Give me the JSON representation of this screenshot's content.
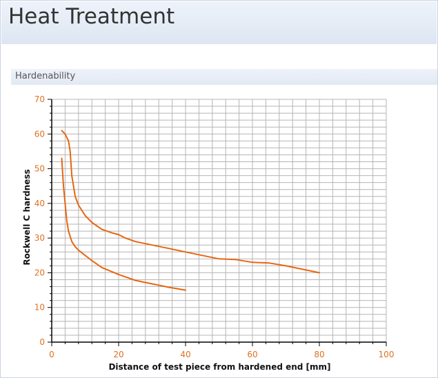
{
  "page": {
    "title": "Heat Treatment",
    "section_title": "Hardenability"
  },
  "colors": {
    "series": "#e8650f",
    "tick_labels": "#e07020",
    "grid": "#b4b4b4"
  },
  "chart_data": {
    "type": "line",
    "title": "",
    "xlabel": "Distance of test piece from hardened end [mm]",
    "ylabel": "Rockwell C hardness",
    "xlim": [
      0,
      100
    ],
    "ylim": [
      0,
      70
    ],
    "x_ticks": [
      0,
      20,
      40,
      60,
      80,
      100
    ],
    "y_ticks": [
      0,
      10,
      20,
      30,
      40,
      50,
      60,
      70
    ],
    "grid": true,
    "legend": "none",
    "series": [
      {
        "x": [
          3,
          4,
          5,
          5.5,
          6,
          7,
          8,
          10,
          12,
          15,
          18,
          20,
          22,
          25,
          30,
          35,
          40,
          45,
          50,
          55,
          60,
          65,
          70,
          75,
          80
        ],
        "y": [
          61,
          60,
          58,
          55,
          48,
          42,
          39.5,
          36.5,
          34.5,
          32.5,
          31.5,
          31,
          30,
          29,
          28,
          27,
          26,
          25,
          24,
          23.8,
          23,
          22.8,
          22,
          21,
          20
        ]
      },
      {
        "x": [
          3,
          3.5,
          4,
          4.5,
          5,
          6,
          7,
          8,
          10,
          12,
          15,
          20,
          25,
          30,
          35,
          40
        ],
        "y": [
          53,
          45,
          40,
          35,
          32,
          29,
          27.5,
          26.5,
          25,
          23.5,
          21.5,
          19.5,
          17.8,
          16.8,
          15.8,
          15
        ]
      }
    ]
  }
}
